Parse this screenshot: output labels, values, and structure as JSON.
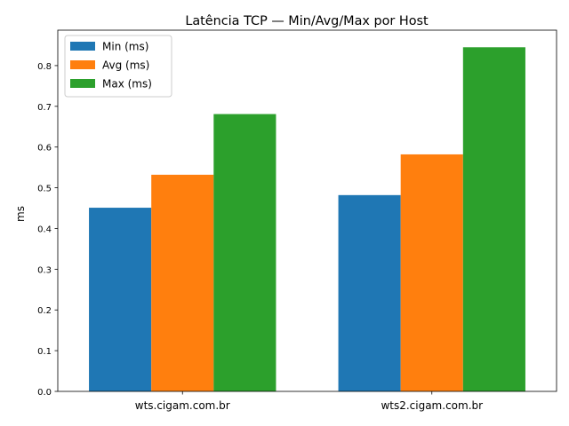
{
  "chart_data": {
    "type": "bar",
    "title": "Latência TCP — Min/Avg/Max por Host",
    "xlabel": "",
    "ylabel": "ms",
    "categories": [
      "wts.cigam.com.br",
      "wts2.cigam.com.br"
    ],
    "series": [
      {
        "name": "Min (ms)",
        "values": [
          0.451,
          0.482
        ],
        "color": "#1f77b4"
      },
      {
        "name": "Avg (ms)",
        "values": [
          0.532,
          0.582
        ],
        "color": "#ff7f0e"
      },
      {
        "name": "Max (ms)",
        "values": [
          0.681,
          0.845
        ],
        "color": "#2ca02c"
      }
    ],
    "ylim": [
      0,
      0.887
    ],
    "yticks": [
      "0.0",
      "0.1",
      "0.2",
      "0.3",
      "0.4",
      "0.5",
      "0.6",
      "0.7",
      "0.8"
    ],
    "grid": false,
    "legend_position": "top-left"
  }
}
